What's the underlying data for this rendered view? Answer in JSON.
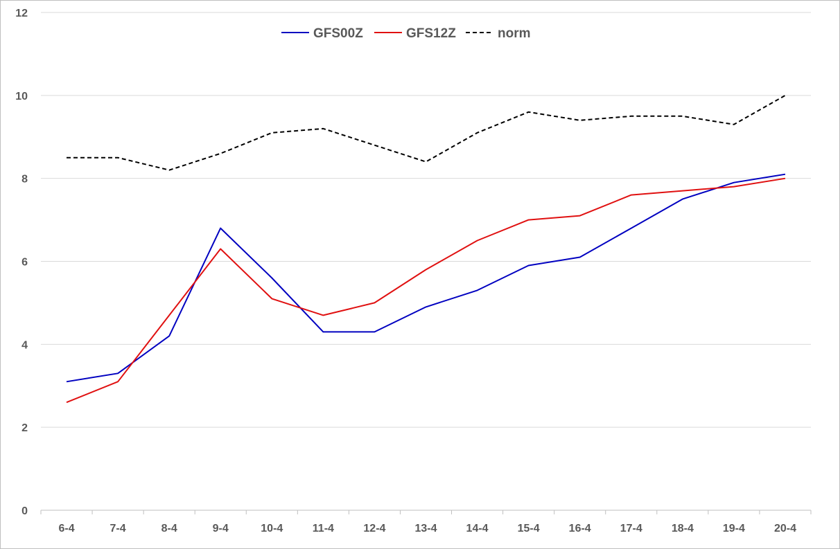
{
  "chart_data": {
    "type": "line",
    "title": "",
    "xlabel": "",
    "ylabel": "",
    "categories": [
      "6-4",
      "7-4",
      "8-4",
      "9-4",
      "10-4",
      "11-4",
      "12-4",
      "13-4",
      "14-4",
      "15-4",
      "16-4",
      "17-4",
      "18-4",
      "19-4",
      "20-4"
    ],
    "ylim": [
      0,
      12
    ],
    "yticks": [
      0,
      2,
      4,
      6,
      8,
      10,
      12
    ],
    "grid": true,
    "legend_position": "top-center",
    "series": [
      {
        "name": "GFS00Z",
        "color": "#0000c0",
        "dash": "solid",
        "values": [
          3.1,
          3.3,
          4.2,
          6.8,
          5.6,
          4.3,
          4.3,
          4.9,
          5.3,
          5.9,
          6.1,
          6.8,
          7.5,
          7.9,
          8.1
        ]
      },
      {
        "name": "GFS12Z",
        "color": "#e01010",
        "dash": "solid",
        "values": [
          2.6,
          3.1,
          4.7,
          6.3,
          5.1,
          4.7,
          5.0,
          5.8,
          6.5,
          7.0,
          7.1,
          7.6,
          7.7,
          7.8,
          8.0
        ]
      },
      {
        "name": "norm",
        "color": "#000000",
        "dash": "dashed",
        "values": [
          8.5,
          8.5,
          8.2,
          8.6,
          9.1,
          9.2,
          8.8,
          8.4,
          9.1,
          9.6,
          9.4,
          9.5,
          9.5,
          9.3,
          10.0
        ]
      }
    ]
  }
}
